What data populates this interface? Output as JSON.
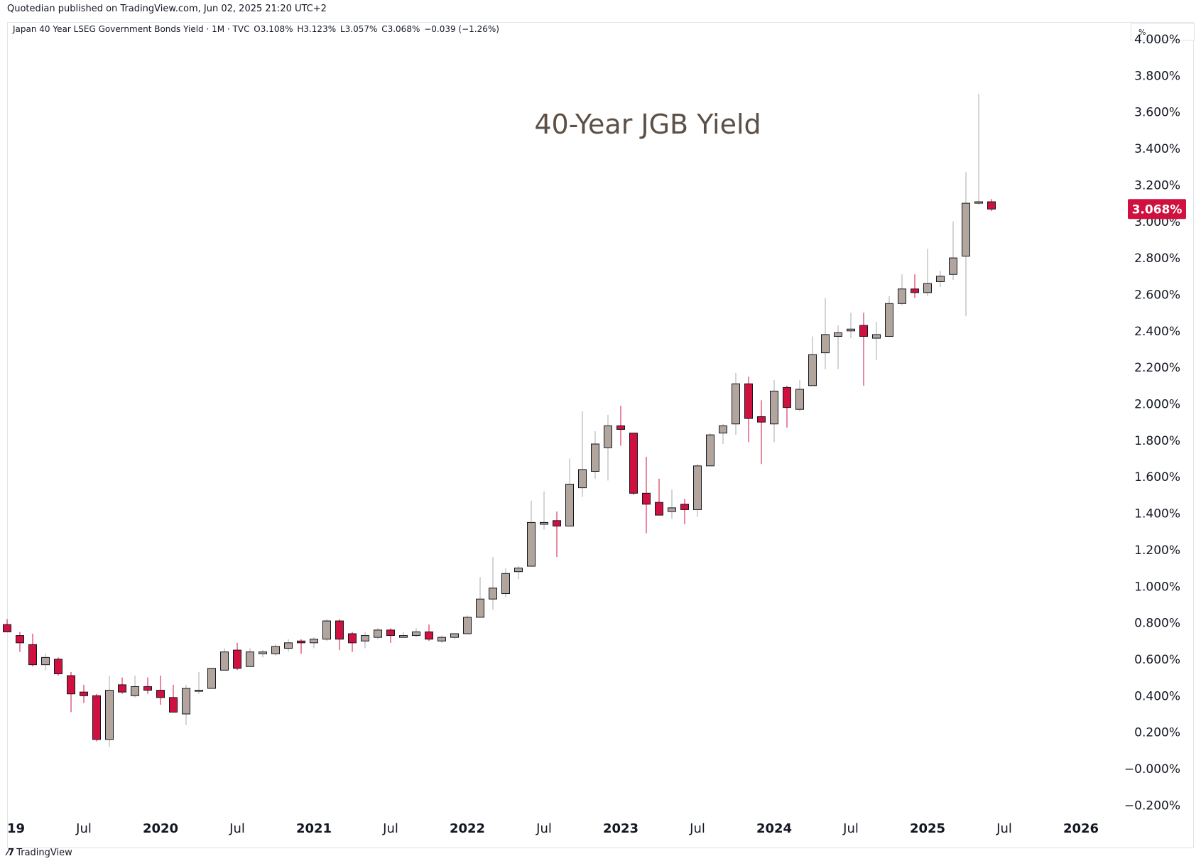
{
  "publisher_line": "Quotedian published on TradingView.com, Jun 02, 2025 21:20 UTC+2",
  "legend": {
    "symbol": "Japan 40 Year LSEG Government Bonds Yield · 1M · TVC",
    "open": "O3.108%",
    "high": "H3.123%",
    "low": "L3.057%",
    "close": "C3.068%",
    "change": "−0.039 (−1.26%)"
  },
  "unit_label": "%",
  "watermark": "TradingView",
  "colors": {
    "up": "#b2a59e",
    "down": "#d0103e",
    "wick_up": "#a8a8a8",
    "wick_down": "#d0103e",
    "last_price_bg": "#d0103e",
    "title": "#5c5046"
  },
  "chart_data": {
    "type": "candlestick",
    "title": "40-Year JGB Yield",
    "interval": "1M",
    "last_price_label": "3.068%",
    "y_axis": {
      "min": -0.2,
      "max": 4.0,
      "ticks": [
        -0.2,
        0.0,
        0.2,
        0.4,
        0.6,
        0.8,
        1.0,
        1.2,
        1.4,
        1.6,
        1.8,
        2.0,
        2.2,
        2.4,
        2.6,
        2.8,
        3.0,
        3.2,
        3.4,
        3.6,
        3.8,
        4.0
      ],
      "tick_labels": [
        "−0.200%",
        "−0.000%",
        "0.200%",
        "0.400%",
        "0.600%",
        "0.800%",
        "1.000%",
        "1.200%",
        "1.400%",
        "1.600%",
        "1.800%",
        "2.000%",
        "2.200%",
        "2.400%",
        "2.600%",
        "2.800%",
        "3.000%",
        "3.200%",
        "3.400%",
        "3.600%",
        "3.800%",
        "4.000%"
      ]
    },
    "x_axis": {
      "labels": [
        {
          "text": "19",
          "month_index": 0,
          "bold": true
        },
        {
          "text": "Jul",
          "month_index": 6,
          "bold": false
        },
        {
          "text": "2020",
          "month_index": 12,
          "bold": true
        },
        {
          "text": "Jul",
          "month_index": 18,
          "bold": false
        },
        {
          "text": "2021",
          "month_index": 24,
          "bold": true
        },
        {
          "text": "Jul",
          "month_index": 30,
          "bold": false
        },
        {
          "text": "2022",
          "month_index": 36,
          "bold": true
        },
        {
          "text": "Jul",
          "month_index": 42,
          "bold": false
        },
        {
          "text": "2023",
          "month_index": 48,
          "bold": true
        },
        {
          "text": "Jul",
          "month_index": 54,
          "bold": false
        },
        {
          "text": "2024",
          "month_index": 60,
          "bold": true
        },
        {
          "text": "Jul",
          "month_index": 66,
          "bold": false
        },
        {
          "text": "2025",
          "month_index": 72,
          "bold": true
        },
        {
          "text": "Jul",
          "month_index": 78,
          "bold": false
        },
        {
          "text": "2026",
          "month_index": 84,
          "bold": true
        }
      ]
    },
    "candles": [
      {
        "m": 0,
        "o": 0.79,
        "h": 0.82,
        "l": 0.76,
        "c": 0.75
      },
      {
        "m": 1,
        "o": 0.73,
        "h": 0.75,
        "l": 0.64,
        "c": 0.69
      },
      {
        "m": 2,
        "o": 0.68,
        "h": 0.74,
        "l": 0.56,
        "c": 0.57
      },
      {
        "m": 3,
        "o": 0.57,
        "h": 0.63,
        "l": 0.54,
        "c": 0.61
      },
      {
        "m": 4,
        "o": 0.6,
        "h": 0.61,
        "l": 0.51,
        "c": 0.52
      },
      {
        "m": 5,
        "o": 0.51,
        "h": 0.53,
        "l": 0.31,
        "c": 0.41
      },
      {
        "m": 6,
        "o": 0.42,
        "h": 0.46,
        "l": 0.36,
        "c": 0.4
      },
      {
        "m": 7,
        "o": 0.4,
        "h": 0.41,
        "l": 0.15,
        "c": 0.16
      },
      {
        "m": 8,
        "o": 0.16,
        "h": 0.51,
        "l": 0.12,
        "c": 0.43
      },
      {
        "m": 9,
        "o": 0.46,
        "h": 0.5,
        "l": 0.41,
        "c": 0.42
      },
      {
        "m": 10,
        "o": 0.4,
        "h": 0.51,
        "l": 0.39,
        "c": 0.45
      },
      {
        "m": 11,
        "o": 0.45,
        "h": 0.5,
        "l": 0.41,
        "c": 0.43
      },
      {
        "m": 12,
        "o": 0.43,
        "h": 0.51,
        "l": 0.35,
        "c": 0.39
      },
      {
        "m": 13,
        "o": 0.39,
        "h": 0.46,
        "l": 0.31,
        "c": 0.31
      },
      {
        "m": 14,
        "o": 0.3,
        "h": 0.46,
        "l": 0.24,
        "c": 0.44
      },
      {
        "m": 15,
        "o": 0.43,
        "h": 0.53,
        "l": 0.41,
        "c": 0.43
      },
      {
        "m": 16,
        "o": 0.44,
        "h": 0.55,
        "l": 0.44,
        "c": 0.55
      },
      {
        "m": 17,
        "o": 0.54,
        "h": 0.66,
        "l": 0.54,
        "c": 0.64
      },
      {
        "m": 18,
        "o": 0.65,
        "h": 0.69,
        "l": 0.54,
        "c": 0.55
      },
      {
        "m": 19,
        "o": 0.56,
        "h": 0.66,
        "l": 0.56,
        "c": 0.64
      },
      {
        "m": 20,
        "o": 0.63,
        "h": 0.65,
        "l": 0.61,
        "c": 0.64
      },
      {
        "m": 21,
        "o": 0.63,
        "h": 0.68,
        "l": 0.62,
        "c": 0.67
      },
      {
        "m": 22,
        "o": 0.66,
        "h": 0.71,
        "l": 0.64,
        "c": 0.69
      },
      {
        "m": 23,
        "o": 0.7,
        "h": 0.71,
        "l": 0.63,
        "c": 0.69
      },
      {
        "m": 24,
        "o": 0.69,
        "h": 0.72,
        "l": 0.66,
        "c": 0.71
      },
      {
        "m": 25,
        "o": 0.71,
        "h": 0.82,
        "l": 0.7,
        "c": 0.81
      },
      {
        "m": 26,
        "o": 0.81,
        "h": 0.82,
        "l": 0.65,
        "c": 0.71
      },
      {
        "m": 27,
        "o": 0.74,
        "h": 0.75,
        "l": 0.64,
        "c": 0.69
      },
      {
        "m": 28,
        "o": 0.7,
        "h": 0.75,
        "l": 0.66,
        "c": 0.73
      },
      {
        "m": 29,
        "o": 0.72,
        "h": 0.77,
        "l": 0.71,
        "c": 0.76
      },
      {
        "m": 30,
        "o": 0.76,
        "h": 0.77,
        "l": 0.69,
        "c": 0.73
      },
      {
        "m": 31,
        "o": 0.72,
        "h": 0.75,
        "l": 0.72,
        "c": 0.73
      },
      {
        "m": 32,
        "o": 0.73,
        "h": 0.77,
        "l": 0.72,
        "c": 0.75
      },
      {
        "m": 33,
        "o": 0.75,
        "h": 0.79,
        "l": 0.7,
        "c": 0.71
      },
      {
        "m": 34,
        "o": 0.7,
        "h": 0.73,
        "l": 0.69,
        "c": 0.72
      },
      {
        "m": 35,
        "o": 0.72,
        "h": 0.74,
        "l": 0.71,
        "c": 0.74
      },
      {
        "m": 36,
        "o": 0.74,
        "h": 0.84,
        "l": 0.74,
        "c": 0.83
      },
      {
        "m": 37,
        "o": 0.83,
        "h": 1.05,
        "l": 0.83,
        "c": 0.93
      },
      {
        "m": 38,
        "o": 0.93,
        "h": 1.16,
        "l": 0.87,
        "c": 0.99
      },
      {
        "m": 39,
        "o": 0.96,
        "h": 1.1,
        "l": 0.94,
        "c": 1.07
      },
      {
        "m": 40,
        "o": 1.08,
        "h": 1.11,
        "l": 1.04,
        "c": 1.1
      },
      {
        "m": 41,
        "o": 1.11,
        "h": 1.47,
        "l": 1.11,
        "c": 1.35
      },
      {
        "m": 42,
        "o": 1.34,
        "h": 1.52,
        "l": 1.31,
        "c": 1.35
      },
      {
        "m": 43,
        "o": 1.36,
        "h": 1.41,
        "l": 1.16,
        "c": 1.33
      },
      {
        "m": 44,
        "o": 1.33,
        "h": 1.7,
        "l": 1.33,
        "c": 1.56
      },
      {
        "m": 45,
        "o": 1.54,
        "h": 1.96,
        "l": 1.49,
        "c": 1.64
      },
      {
        "m": 46,
        "o": 1.63,
        "h": 1.85,
        "l": 1.59,
        "c": 1.78
      },
      {
        "m": 47,
        "o": 1.76,
        "h": 1.94,
        "l": 1.58,
        "c": 1.88
      },
      {
        "m": 48,
        "o": 1.88,
        "h": 1.99,
        "l": 1.77,
        "c": 1.86
      },
      {
        "m": 49,
        "o": 1.84,
        "h": 1.84,
        "l": 1.5,
        "c": 1.51
      },
      {
        "m": 50,
        "o": 1.51,
        "h": 1.71,
        "l": 1.29,
        "c": 1.45
      },
      {
        "m": 51,
        "o": 1.46,
        "h": 1.59,
        "l": 1.39,
        "c": 1.39
      },
      {
        "m": 52,
        "o": 1.41,
        "h": 1.53,
        "l": 1.37,
        "c": 1.43
      },
      {
        "m": 53,
        "o": 1.45,
        "h": 1.48,
        "l": 1.34,
        "c": 1.42
      },
      {
        "m": 54,
        "o": 1.42,
        "h": 1.67,
        "l": 1.38,
        "c": 1.66
      },
      {
        "m": 55,
        "o": 1.66,
        "h": 1.84,
        "l": 1.66,
        "c": 1.83
      },
      {
        "m": 56,
        "o": 1.84,
        "h": 1.89,
        "l": 1.78,
        "c": 1.88
      },
      {
        "m": 57,
        "o": 1.89,
        "h": 2.17,
        "l": 1.83,
        "c": 2.11
      },
      {
        "m": 58,
        "o": 2.11,
        "h": 2.15,
        "l": 1.79,
        "c": 1.92
      },
      {
        "m": 59,
        "o": 1.93,
        "h": 2.02,
        "l": 1.67,
        "c": 1.9
      },
      {
        "m": 60,
        "o": 1.89,
        "h": 2.13,
        "l": 1.79,
        "c": 2.07
      },
      {
        "m": 61,
        "o": 2.09,
        "h": 2.1,
        "l": 1.87,
        "c": 1.98
      },
      {
        "m": 62,
        "o": 1.97,
        "h": 2.13,
        "l": 1.96,
        "c": 2.08
      },
      {
        "m": 63,
        "o": 2.1,
        "h": 2.37,
        "l": 2.1,
        "c": 2.27
      },
      {
        "m": 64,
        "o": 2.28,
        "h": 2.58,
        "l": 2.19,
        "c": 2.38
      },
      {
        "m": 65,
        "o": 2.37,
        "h": 2.43,
        "l": 2.19,
        "c": 2.39
      },
      {
        "m": 66,
        "o": 2.4,
        "h": 2.5,
        "l": 2.36,
        "c": 2.41
      },
      {
        "m": 67,
        "o": 2.43,
        "h": 2.5,
        "l": 2.1,
        "c": 2.37
      },
      {
        "m": 68,
        "o": 2.36,
        "h": 2.45,
        "l": 2.24,
        "c": 2.38
      },
      {
        "m": 69,
        "o": 2.37,
        "h": 2.59,
        "l": 2.37,
        "c": 2.55
      },
      {
        "m": 70,
        "o": 2.55,
        "h": 2.71,
        "l": 2.54,
        "c": 2.63
      },
      {
        "m": 71,
        "o": 2.63,
        "h": 2.71,
        "l": 2.58,
        "c": 2.61
      },
      {
        "m": 72,
        "o": 2.61,
        "h": 2.85,
        "l": 2.59,
        "c": 2.66
      },
      {
        "m": 73,
        "o": 2.67,
        "h": 2.73,
        "l": 2.64,
        "c": 2.7
      },
      {
        "m": 74,
        "o": 2.71,
        "h": 3.0,
        "l": 2.68,
        "c": 2.8
      },
      {
        "m": 75,
        "o": 2.81,
        "h": 3.27,
        "l": 2.48,
        "c": 3.1
      },
      {
        "m": 76,
        "o": 3.1,
        "h": 3.7,
        "l": 3.09,
        "c": 3.108
      },
      {
        "m": 77,
        "o": 3.108,
        "h": 3.123,
        "l": 3.057,
        "c": 3.068
      }
    ]
  }
}
